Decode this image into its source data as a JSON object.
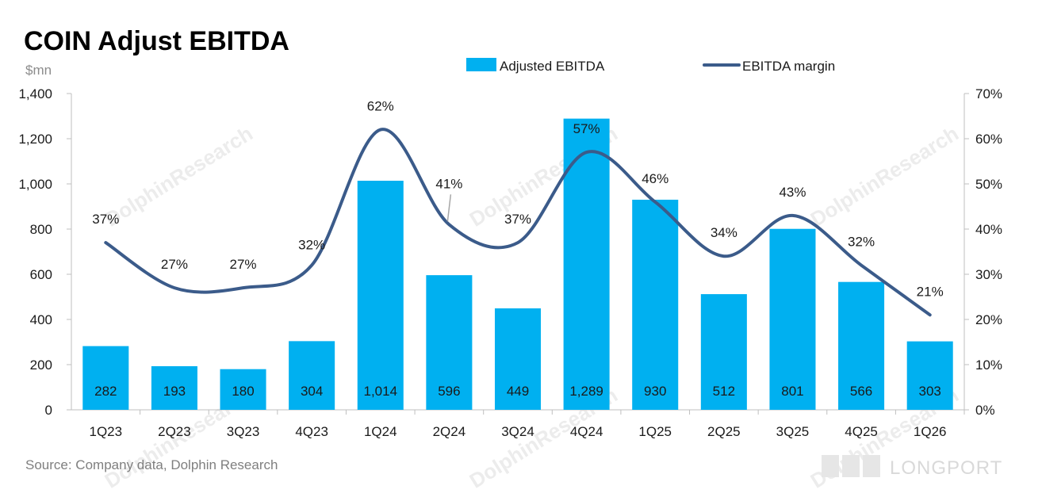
{
  "title": "COIN Adjust EBITDA",
  "unit_label": "$mn",
  "source": "Source: Company data, Dolphin Research",
  "watermark": "DolphinResearch",
  "brand": "LONGPORT",
  "legend": {
    "bar": "Adjusted EBITDA",
    "line": "EBITDA margin",
    "placement": "top-center"
  },
  "colors": {
    "bar": "#00b0f0",
    "line": "#3b5b8a"
  },
  "chart_data": {
    "type": "bar",
    "categories": [
      "1Q23",
      "2Q23",
      "3Q23",
      "4Q23",
      "1Q24",
      "2Q24",
      "3Q24",
      "4Q24",
      "1Q25",
      "2Q25",
      "3Q25",
      "4Q25",
      "1Q26"
    ],
    "series": [
      {
        "name": "Adjusted EBITDA",
        "type": "bar",
        "axis": "left",
        "values": [
          282,
          193,
          180,
          304,
          1014,
          596,
          449,
          1289,
          930,
          512,
          801,
          566,
          303
        ],
        "labels": [
          "282",
          "193",
          "180",
          "304",
          "1,014",
          "596",
          "449",
          "1,289",
          "930",
          "512",
          "801",
          "566",
          "303"
        ]
      },
      {
        "name": "EBITDA margin",
        "type": "line",
        "axis": "right",
        "values": [
          37,
          27,
          27,
          32,
          62,
          41,
          37,
          57,
          46,
          34,
          43,
          32,
          21
        ],
        "labels": [
          "37%",
          "27%",
          "27%",
          "32%",
          "62%",
          "41%",
          "37%",
          "57%",
          "46%",
          "34%",
          "43%",
          "32%",
          "21%"
        ]
      }
    ],
    "y_left": {
      "range": [
        0,
        1400
      ],
      "ticks": [
        0,
        200,
        400,
        600,
        800,
        1000,
        1200,
        1400
      ],
      "tick_labels": [
        "0",
        "200",
        "400",
        "600",
        "800",
        "1,000",
        "1,200",
        "1,400"
      ]
    },
    "y_right": {
      "range": [
        0,
        70
      ],
      "ticks": [
        0,
        10,
        20,
        30,
        40,
        50,
        60,
        70
      ],
      "tick_labels": [
        "0%",
        "10%",
        "20%",
        "30%",
        "40%",
        "50%",
        "60%",
        "70%"
      ]
    },
    "grid": false
  }
}
